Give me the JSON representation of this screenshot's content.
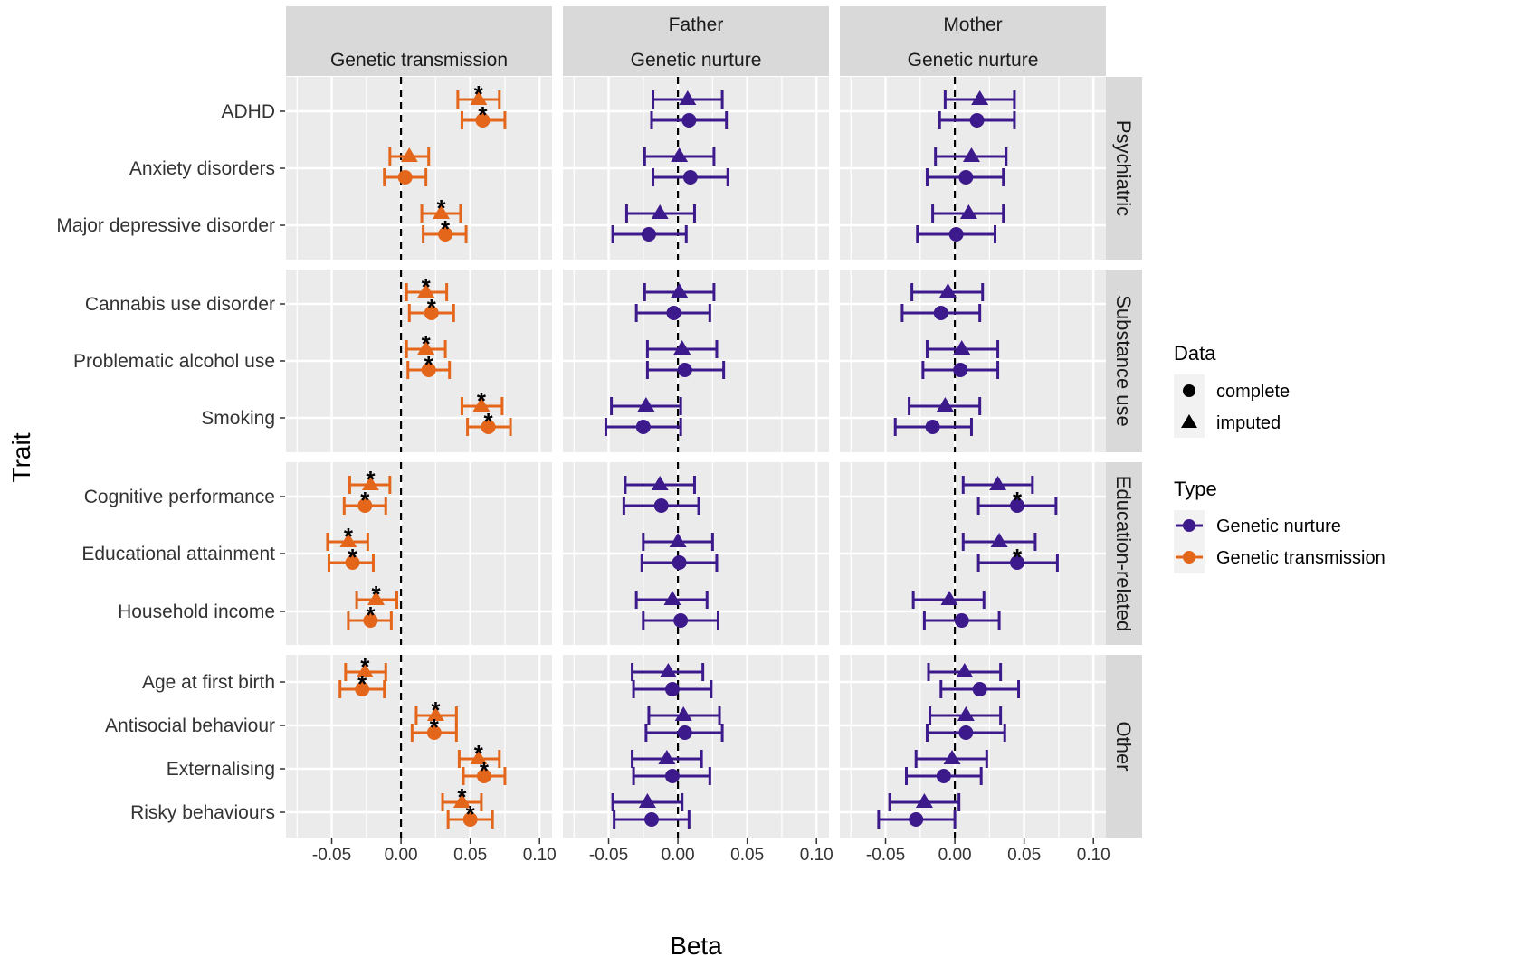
{
  "chart_data": {
    "type": "scatter",
    "subtype": "forest-plot-faceted",
    "xlabel": "Beta",
    "ylabel": "Trait",
    "xlim": [
      -0.083,
      0.109
    ],
    "xticks": [
      -0.05,
      0.0,
      0.05,
      0.1
    ],
    "xtick_labels": [
      "-0.05",
      "0.00",
      "0.05",
      "0.10"
    ],
    "reference_line": 0,
    "grid": true,
    "colors": {
      "Genetic transmission": "#E4661A",
      "Genetic nurture": "#3D1A8C",
      "panel_bg": "#EBEBEB",
      "strip_bg": "#D9D9D9",
      "grid": "#FFFFFF"
    },
    "column_facets": [
      {
        "id": "gt",
        "label_top": "",
        "label_bottom": "Genetic transmission",
        "type": "Genetic transmission"
      },
      {
        "id": "father",
        "label_top": "Father",
        "label_bottom": "Genetic nurture",
        "type": "Genetic nurture"
      },
      {
        "id": "mother",
        "label_top": "Mother",
        "label_bottom": "Genetic nurture",
        "type": "Genetic nurture"
      }
    ],
    "row_facets": [
      {
        "label": "Psychiatric",
        "traits": [
          "ADHD",
          "Anxiety disorders",
          "Major depressive disorder"
        ]
      },
      {
        "label": "Substance use",
        "traits": [
          "Cannabis use disorder",
          "Problematic alcohol use",
          "Smoking"
        ]
      },
      {
        "label": "Education-related",
        "traits": [
          "Cognitive performance",
          "Educational attainment",
          "Household income"
        ]
      },
      {
        "label": "Other",
        "traits": [
          "Age at first birth",
          "Antisocial behaviour",
          "Externalising",
          "Risky behaviours"
        ]
      }
    ],
    "legend": {
      "placement": "right",
      "data": {
        "title": "Data",
        "items": [
          {
            "label": "complete",
            "shape": "circle"
          },
          {
            "label": "imputed",
            "shape": "triangle"
          }
        ]
      },
      "type": {
        "title": "Type",
        "items": [
          {
            "label": "Genetic nurture",
            "color": "#3D1A8C"
          },
          {
            "label": "Genetic transmission",
            "color": "#E4661A"
          }
        ]
      }
    },
    "significance_marker": "*",
    "estimates": {
      "gt": {
        "ADHD": {
          "imputed": [
            0.056,
            0.041,
            0.071,
            true
          ],
          "complete": [
            0.059,
            0.044,
            0.075,
            true
          ]
        },
        "Anxiety disorders": {
          "imputed": [
            0.006,
            -0.008,
            0.02,
            false
          ],
          "complete": [
            0.003,
            -0.012,
            0.018,
            false
          ]
        },
        "Major depressive disorder": {
          "imputed": [
            0.029,
            0.015,
            0.043,
            true
          ],
          "complete": [
            0.032,
            0.016,
            0.047,
            true
          ]
        },
        "Cannabis use disorder": {
          "imputed": [
            0.018,
            0.004,
            0.033,
            true
          ],
          "complete": [
            0.022,
            0.006,
            0.038,
            true
          ]
        },
        "Problematic alcohol use": {
          "imputed": [
            0.018,
            0.004,
            0.032,
            true
          ],
          "complete": [
            0.02,
            0.005,
            0.035,
            true
          ]
        },
        "Smoking": {
          "imputed": [
            0.058,
            0.044,
            0.073,
            true
          ],
          "complete": [
            0.063,
            0.048,
            0.079,
            true
          ]
        },
        "Cognitive performance": {
          "imputed": [
            -0.022,
            -0.037,
            -0.008,
            true
          ],
          "complete": [
            -0.026,
            -0.041,
            -0.011,
            true
          ]
        },
        "Educational attainment": {
          "imputed": [
            -0.038,
            -0.053,
            -0.024,
            true
          ],
          "complete": [
            -0.035,
            -0.052,
            -0.02,
            true
          ]
        },
        "Household income": {
          "imputed": [
            -0.018,
            -0.032,
            -0.003,
            true
          ],
          "complete": [
            -0.022,
            -0.038,
            -0.007,
            true
          ]
        },
        "Age at first birth": {
          "imputed": [
            -0.026,
            -0.04,
            -0.011,
            true
          ],
          "complete": [
            -0.028,
            -0.044,
            -0.012,
            true
          ]
        },
        "Antisocial behaviour": {
          "imputed": [
            0.025,
            0.011,
            0.04,
            true
          ],
          "complete": [
            0.024,
            0.008,
            0.04,
            true
          ]
        },
        "Externalising": {
          "imputed": [
            0.056,
            0.042,
            0.071,
            true
          ],
          "complete": [
            0.06,
            0.045,
            0.075,
            true
          ]
        },
        "Risky behaviours": {
          "imputed": [
            0.044,
            0.03,
            0.058,
            true
          ],
          "complete": [
            0.05,
            0.034,
            0.066,
            true
          ]
        }
      },
      "father": {
        "ADHD": {
          "imputed": [
            0.007,
            -0.018,
            0.032,
            false
          ],
          "complete": [
            0.008,
            -0.019,
            0.035,
            false
          ]
        },
        "Anxiety disorders": {
          "imputed": [
            0.001,
            -0.024,
            0.026,
            false
          ],
          "complete": [
            0.009,
            -0.018,
            0.036,
            false
          ]
        },
        "Major depressive disorder": {
          "imputed": [
            -0.013,
            -0.037,
            0.012,
            false
          ],
          "complete": [
            -0.021,
            -0.047,
            0.006,
            false
          ]
        },
        "Cannabis use disorder": {
          "imputed": [
            0.001,
            -0.024,
            0.026,
            false
          ],
          "complete": [
            -0.003,
            -0.03,
            0.023,
            false
          ]
        },
        "Problematic alcohol use": {
          "imputed": [
            0.003,
            -0.022,
            0.028,
            false
          ],
          "complete": [
            0.005,
            -0.022,
            0.033,
            false
          ]
        },
        "Smoking": {
          "imputed": [
            -0.023,
            -0.048,
            0.002,
            false
          ],
          "complete": [
            -0.025,
            -0.052,
            0.002,
            false
          ]
        },
        "Cognitive performance": {
          "imputed": [
            -0.013,
            -0.038,
            0.012,
            false
          ],
          "complete": [
            -0.012,
            -0.039,
            0.015,
            false
          ]
        },
        "Educational attainment": {
          "imputed": [
            0.0,
            -0.025,
            0.025,
            false
          ],
          "complete": [
            0.001,
            -0.026,
            0.028,
            false
          ]
        },
        "Household income": {
          "imputed": [
            -0.004,
            -0.03,
            0.021,
            false
          ],
          "complete": [
            0.002,
            -0.025,
            0.029,
            false
          ]
        },
        "Age at first birth": {
          "imputed": [
            -0.007,
            -0.033,
            0.018,
            false
          ],
          "complete": [
            -0.004,
            -0.032,
            0.024,
            false
          ]
        },
        "Antisocial behaviour": {
          "imputed": [
            0.004,
            -0.021,
            0.03,
            false
          ],
          "complete": [
            0.005,
            -0.023,
            0.032,
            false
          ]
        },
        "Externalising": {
          "imputed": [
            -0.008,
            -0.033,
            0.017,
            false
          ],
          "complete": [
            -0.004,
            -0.032,
            0.023,
            false
          ]
        },
        "Risky behaviours": {
          "imputed": [
            -0.022,
            -0.047,
            0.003,
            false
          ],
          "complete": [
            -0.019,
            -0.046,
            0.008,
            false
          ]
        }
      },
      "mother": {
        "ADHD": {
          "imputed": [
            0.018,
            -0.007,
            0.043,
            false
          ],
          "complete": [
            0.016,
            -0.011,
            0.043,
            false
          ]
        },
        "Anxiety disorders": {
          "imputed": [
            0.012,
            -0.014,
            0.037,
            false
          ],
          "complete": [
            0.008,
            -0.02,
            0.035,
            false
          ]
        },
        "Major depressive disorder": {
          "imputed": [
            0.01,
            -0.016,
            0.035,
            false
          ],
          "complete": [
            0.001,
            -0.027,
            0.029,
            false
          ]
        },
        "Cannabis use disorder": {
          "imputed": [
            -0.005,
            -0.031,
            0.02,
            false
          ],
          "complete": [
            -0.01,
            -0.038,
            0.018,
            false
          ]
        },
        "Problematic alcohol use": {
          "imputed": [
            0.005,
            -0.02,
            0.031,
            false
          ],
          "complete": [
            0.004,
            -0.023,
            0.031,
            false
          ]
        },
        "Smoking": {
          "imputed": [
            -0.007,
            -0.033,
            0.018,
            false
          ],
          "complete": [
            -0.016,
            -0.043,
            0.012,
            false
          ]
        },
        "Cognitive performance": {
          "imputed": [
            0.031,
            0.006,
            0.056,
            false
          ],
          "complete": [
            0.045,
            0.017,
            0.073,
            true
          ]
        },
        "Educational attainment": {
          "imputed": [
            0.032,
            0.006,
            0.058,
            false
          ],
          "complete": [
            0.045,
            0.017,
            0.074,
            true
          ]
        },
        "Household income": {
          "imputed": [
            -0.004,
            -0.03,
            0.021,
            false
          ],
          "complete": [
            0.005,
            -0.022,
            0.032,
            false
          ]
        },
        "Age at first birth": {
          "imputed": [
            0.007,
            -0.019,
            0.033,
            false
          ],
          "complete": [
            0.018,
            -0.01,
            0.046,
            false
          ]
        },
        "Antisocial behaviour": {
          "imputed": [
            0.008,
            -0.018,
            0.033,
            false
          ],
          "complete": [
            0.008,
            -0.02,
            0.036,
            false
          ]
        },
        "Externalising": {
          "imputed": [
            -0.002,
            -0.028,
            0.023,
            false
          ],
          "complete": [
            -0.008,
            -0.035,
            0.019,
            false
          ]
        },
        "Risky behaviours": {
          "imputed": [
            -0.022,
            -0.047,
            0.003,
            false
          ],
          "complete": [
            -0.028,
            -0.055,
            0.0,
            false
          ]
        }
      }
    },
    "estimate_format": [
      "beta",
      "ci_low",
      "ci_high",
      "significant"
    ]
  }
}
